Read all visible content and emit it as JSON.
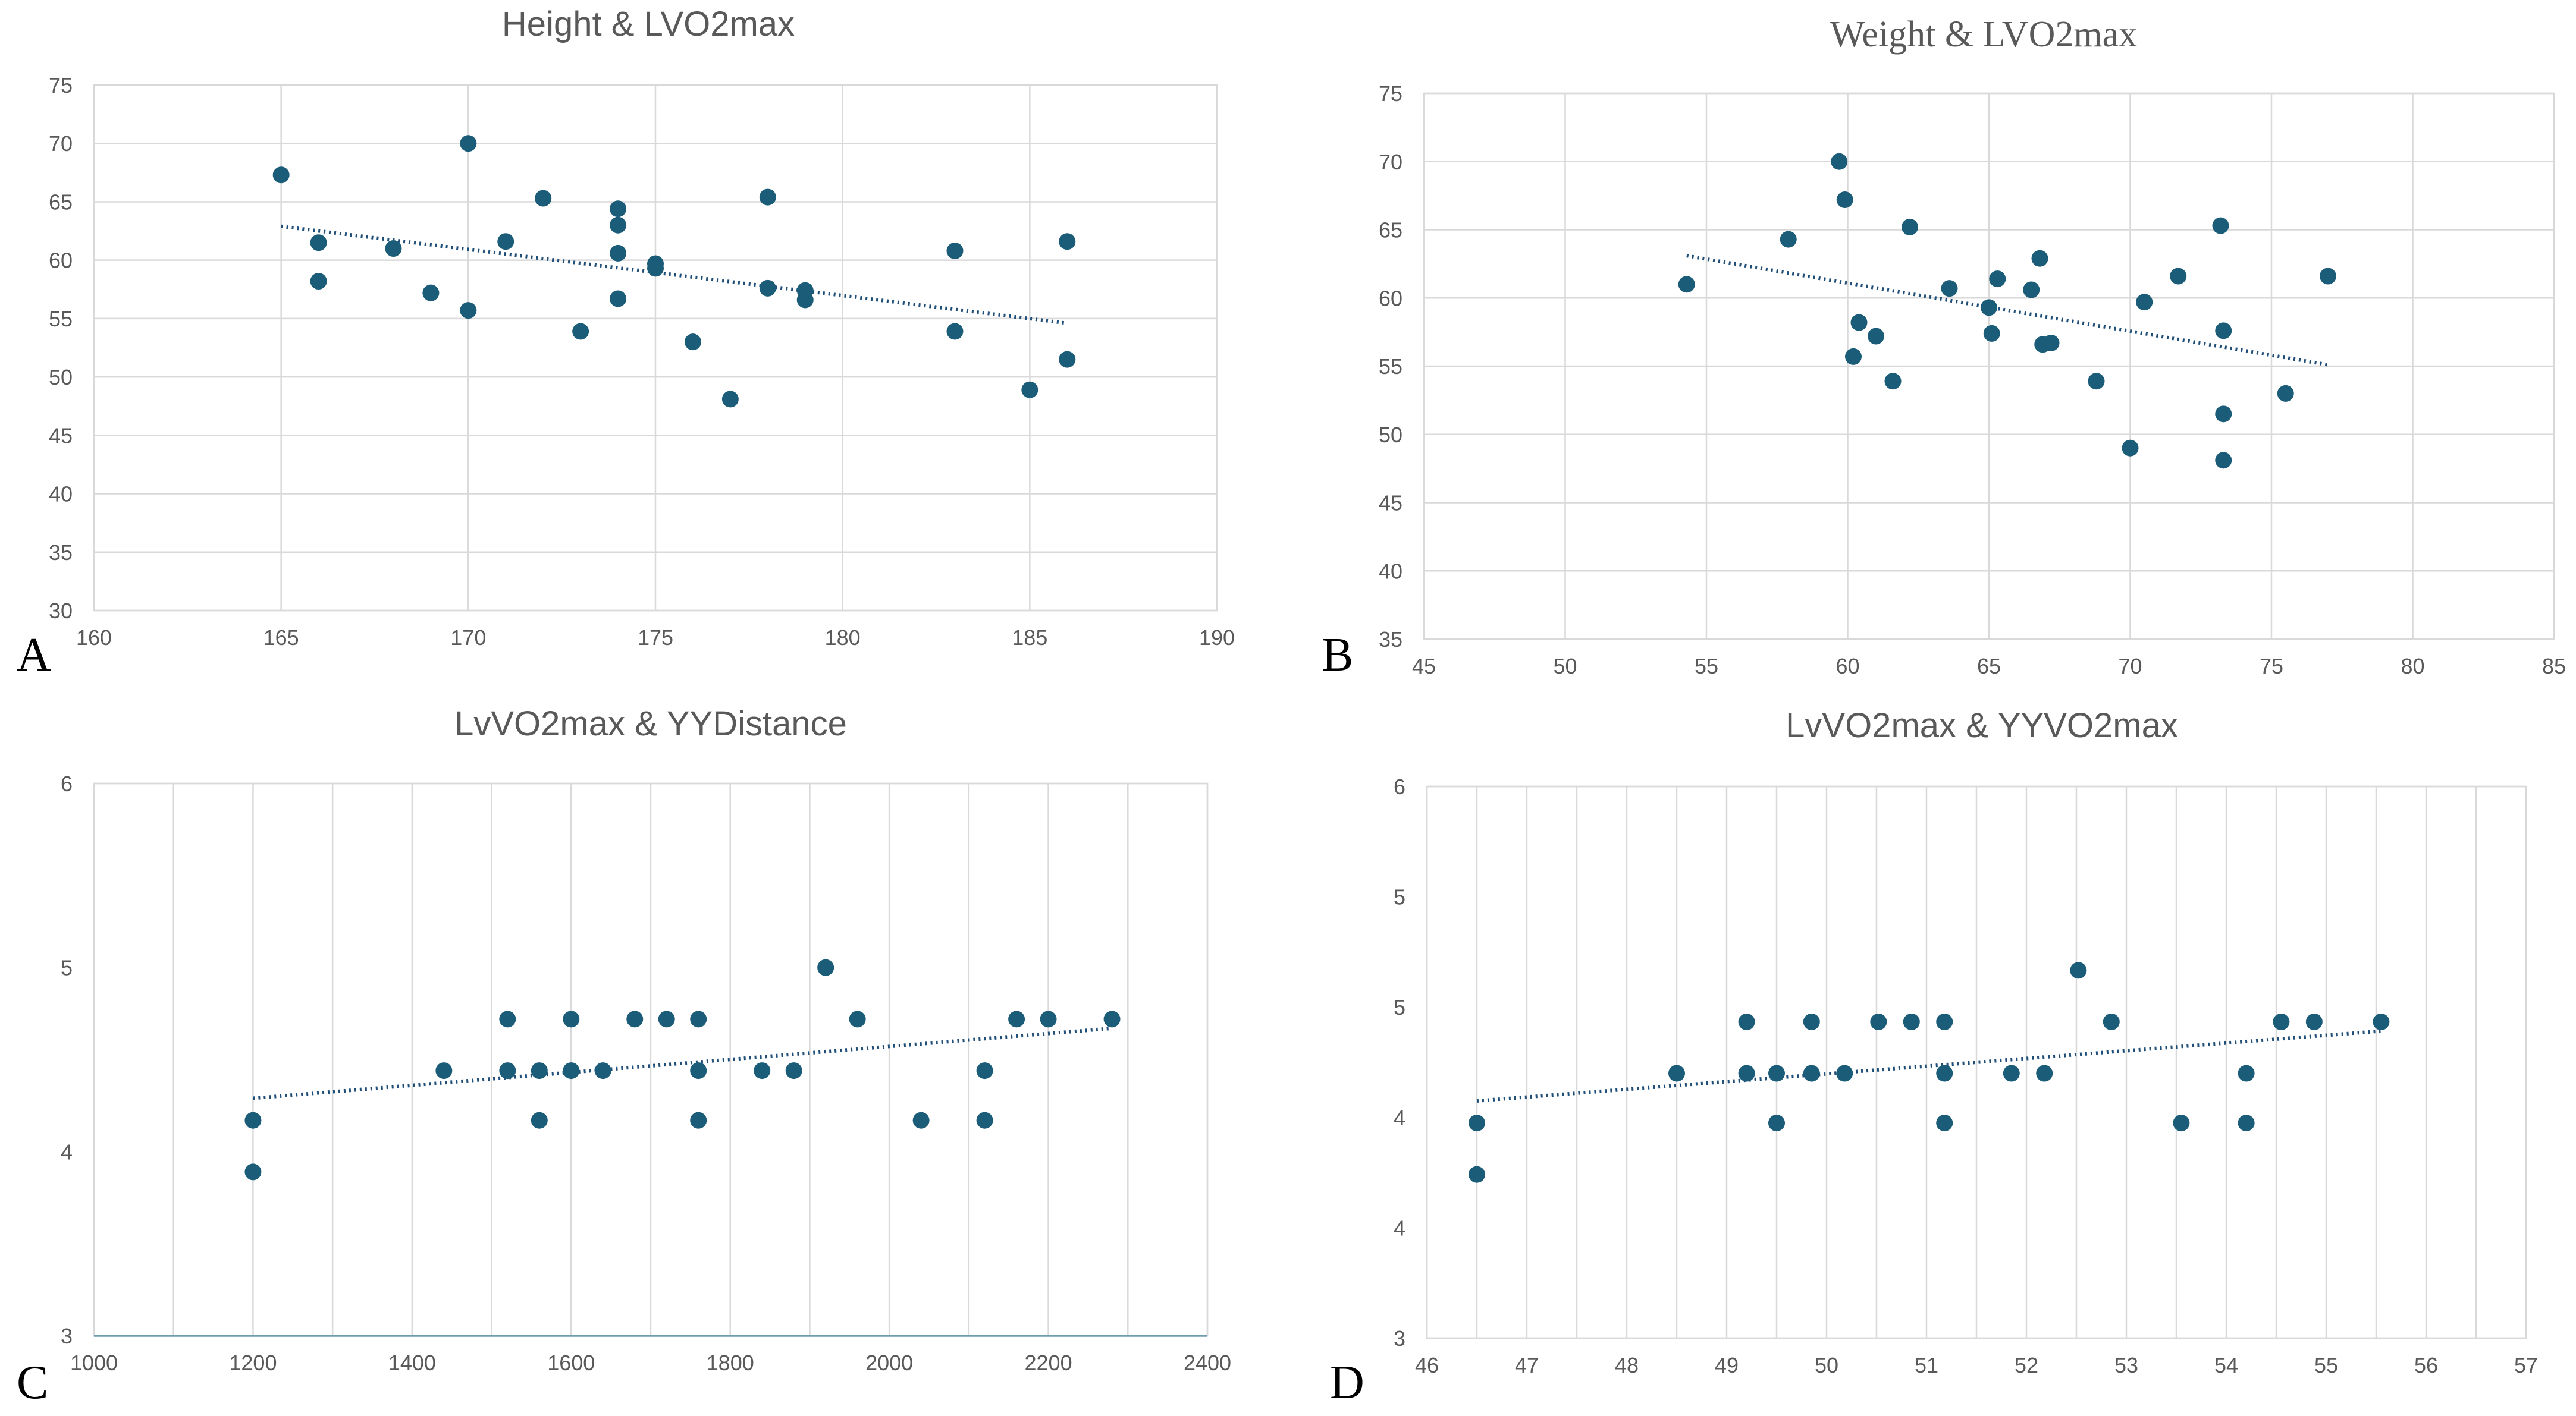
{
  "colors": {
    "point": "#1b5c78",
    "trend": "#1f4e79",
    "grid": "#d9d9d9",
    "text": "#595959",
    "baseline": "#6e9db0"
  },
  "chart_data": [
    {
      "id": "A",
      "panel_label": "A",
      "type": "scatter",
      "title": "Height & LVO2max",
      "xlabel": "",
      "ylabel": "",
      "xlim": [
        160,
        190
      ],
      "ylim": [
        30,
        75
      ],
      "xticks": [
        "160",
        "165",
        "170",
        "175",
        "180",
        "185",
        "190"
      ],
      "yticks": [
        "30",
        "35",
        "40",
        "45",
        "50",
        "55",
        "60",
        "65",
        "70",
        "75"
      ],
      "x": [
        165,
        166,
        166,
        168,
        169,
        170,
        170,
        171,
        172,
        173,
        174,
        174,
        174,
        174,
        175,
        175,
        176,
        177,
        178,
        178,
        179,
        179,
        183,
        183,
        185,
        186,
        186
      ],
      "y": [
        67.3,
        61.5,
        58.2,
        61.0,
        57.2,
        70.0,
        55.7,
        61.6,
        65.3,
        53.9,
        64.4,
        63.0,
        60.6,
        56.7,
        59.7,
        59.3,
        53.0,
        48.1,
        65.4,
        57.6,
        57.4,
        56.6,
        60.8,
        53.9,
        48.9,
        61.6,
        51.5
      ],
      "trendline": {
        "type": "linear",
        "x_start": 165,
        "y_start": 62.9,
        "x_end": 186,
        "y_end": 54.6
      }
    },
    {
      "id": "B",
      "panel_label": "B",
      "type": "scatter",
      "title": "Weight & LVO2max",
      "xlabel": "",
      "ylabel": "",
      "xlim": [
        45,
        85
      ],
      "ylim": [
        35,
        75
      ],
      "xticks": [
        "45",
        "50",
        "55",
        "60",
        "65",
        "70",
        "75",
        "80",
        "85"
      ],
      "yticks": [
        "35",
        "40",
        "45",
        "50",
        "55",
        "60",
        "65",
        "70",
        "75"
      ],
      "x": [
        54.3,
        57.9,
        59.7,
        59.9,
        60.2,
        60.4,
        61.0,
        61.6,
        62.2,
        63.6,
        65.0,
        65.1,
        65.3,
        66.5,
        66.8,
        66.9,
        67.2,
        68.8,
        70.0,
        70.5,
        71.7,
        73.2,
        73.3,
        73.3,
        73.3,
        75.5,
        77.0
      ],
      "y": [
        61.0,
        64.3,
        70.0,
        67.2,
        55.7,
        58.2,
        57.2,
        53.9,
        65.2,
        60.7,
        59.3,
        57.4,
        61.4,
        60.6,
        62.9,
        56.6,
        56.7,
        53.9,
        49.0,
        59.7,
        61.6,
        65.3,
        57.6,
        51.5,
        48.1,
        53.0,
        61.6
      ],
      "trendline": {
        "type": "linear",
        "x_start": 54.3,
        "y_start": 63.1,
        "x_end": 77.0,
        "y_end": 55.1
      }
    },
    {
      "id": "C",
      "panel_label": "C",
      "type": "scatter",
      "title": "LvVO2max & YYDistance",
      "xlabel": "",
      "ylabel": "",
      "xlim": [
        1000,
        2400
      ],
      "ylim": [
        3,
        6
      ],
      "xticks": [
        "1000",
        "1200",
        "1400",
        "1600",
        "1800",
        "2000",
        "2200",
        "2400"
      ],
      "yticks": [
        "3",
        "4",
        "5",
        "6"
      ],
      "x": [
        1200,
        1200,
        1440,
        1520,
        1520,
        1560,
        1560,
        1600,
        1600,
        1640,
        1680,
        1720,
        1760,
        1760,
        1760,
        1840,
        1880,
        1920,
        1960,
        2040,
        2120,
        2120,
        2160,
        2200,
        2280
      ],
      "y": [
        4.17,
        3.89,
        4.44,
        4.72,
        4.44,
        4.44,
        4.17,
        4.72,
        4.44,
        4.44,
        4.72,
        4.72,
        4.72,
        4.44,
        4.17,
        4.44,
        4.44,
        5.0,
        4.72,
        4.17,
        4.44,
        4.17,
        4.72,
        4.72,
        4.72
      ],
      "trendline": {
        "type": "linear",
        "x_start": 1200,
        "y_start": 4.29,
        "x_end": 2280,
        "y_end": 4.67
      }
    },
    {
      "id": "D",
      "panel_label": "D",
      "type": "scatter",
      "title": "LvVO2max & YYVO2max",
      "xlabel": "",
      "ylabel": "",
      "xlim": [
        46,
        57
      ],
      "ylim": [
        3,
        6
      ],
      "xticks": [
        "46",
        "47",
        "48",
        "49",
        "50",
        "51",
        "52",
        "53",
        "54",
        "55",
        "56",
        "57"
      ],
      "yticks": [
        "3",
        "4",
        "4",
        "5",
        "5",
        "6"
      ],
      "x": [
        46.5,
        46.5,
        48.5,
        49.2,
        49.2,
        49.5,
        49.5,
        49.85,
        49.85,
        50.18,
        50.52,
        50.85,
        51.18,
        51.18,
        51.18,
        51.85,
        52.18,
        52.52,
        52.85,
        53.55,
        54.2,
        54.2,
        54.55,
        54.88,
        55.55
      ],
      "y": [
        4.17,
        3.89,
        4.44,
        4.72,
        4.44,
        4.44,
        4.17,
        4.72,
        4.44,
        4.44,
        4.72,
        4.72,
        4.72,
        4.44,
        4.17,
        4.44,
        4.44,
        5.0,
        4.72,
        4.17,
        4.44,
        4.17,
        4.72,
        4.72,
        4.72
      ],
      "trendline": {
        "type": "linear",
        "x_start": 46.5,
        "y_start": 4.29,
        "x_end": 55.55,
        "y_end": 4.67
      }
    }
  ]
}
